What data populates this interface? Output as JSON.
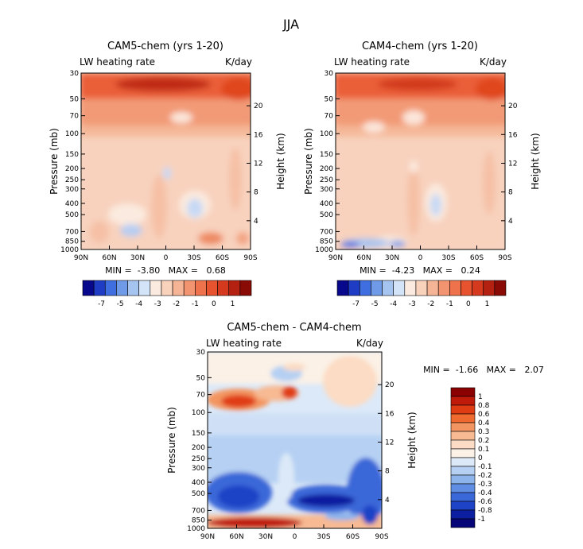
{
  "figure": {
    "title": "JJA"
  },
  "chart_data": [
    {
      "type": "heatmap",
      "title": "CAM5-chem (yrs 1-20)",
      "left_label": "LW heating rate",
      "right_label": "K/day",
      "xlabel": "",
      "ylabel": "Pressure (mb)",
      "y2label": "Height (km)",
      "x_ticks": [
        "90N",
        "60N",
        "30N",
        "0",
        "30S",
        "60S",
        "90S"
      ],
      "y_ticks": [
        "30",
        "50",
        "70",
        "100",
        "150",
        "200",
        "250",
        "300",
        "400",
        "500",
        "700",
        "850",
        "1000"
      ],
      "y2_ticks": [
        "20",
        "16",
        "12",
        "8",
        "4"
      ],
      "ylim": [
        30,
        1000
      ],
      "stats": "MIN =  -3.80   MAX =   0.68",
      "colorbar_labels": [
        "-7",
        "-5",
        "-4",
        "-3",
        "-2",
        "-1",
        "0",
        "1"
      ]
    },
    {
      "type": "heatmap",
      "title": "CAM4-chem (yrs 1-20)",
      "left_label": "LW heating rate",
      "right_label": "K/day",
      "xlabel": "",
      "ylabel": "Pressure (mb)",
      "y2label": "Height (km)",
      "x_ticks": [
        "90N",
        "60N",
        "30N",
        "0",
        "30S",
        "60S",
        "90S"
      ],
      "y_ticks": [
        "30",
        "50",
        "70",
        "100",
        "150",
        "200",
        "250",
        "300",
        "400",
        "500",
        "700",
        "850",
        "1000"
      ],
      "y2_ticks": [
        "20",
        "16",
        "12",
        "8",
        "4"
      ],
      "ylim": [
        30,
        1000
      ],
      "stats": "MIN =  -4.23   MAX =   0.24",
      "colorbar_labels": [
        "-7",
        "-5",
        "-4",
        "-3",
        "-2",
        "-1",
        "0",
        "1"
      ]
    },
    {
      "type": "heatmap",
      "title": "CAM5-chem - CAM4-chem",
      "left_label": "LW heating rate",
      "right_label": "K/day",
      "xlabel": "",
      "ylabel": "Pressure (mb)",
      "y2label": "Height (km)",
      "x_ticks": [
        "90N",
        "60N",
        "30N",
        "0",
        "30S",
        "60S",
        "90S"
      ],
      "y_ticks": [
        "30",
        "50",
        "70",
        "100",
        "150",
        "200",
        "250",
        "300",
        "400",
        "500",
        "700",
        "850",
        "1000"
      ],
      "y2_ticks": [
        "20",
        "16",
        "12",
        "8",
        "4"
      ],
      "ylim": [
        30,
        1000
      ],
      "stats": "MIN =  -1.66   MAX =   2.07",
      "colorbar_labels": [
        "1",
        "0.8",
        "0.6",
        "0.4",
        "0.3",
        "0.2",
        "0.1",
        "0",
        "-0.1",
        "-0.2",
        "-0.3",
        "-0.4",
        "-0.6",
        "-0.8",
        "-1"
      ]
    }
  ],
  "colors": {
    "scale_abs": [
      "#08088c",
      "#1f3cc4",
      "#3f6ee0",
      "#6f9ae8",
      "#a6c4f0",
      "#d3e4f8",
      "#fbeadf",
      "#f9d2bc",
      "#f6b496",
      "#f29470",
      "#ee734d",
      "#e8532f",
      "#d63a1e",
      "#b52110",
      "#8a0a06"
    ],
    "scale_diff": [
      "#8b0000",
      "#c01a0a",
      "#e03c14",
      "#ef6a2e",
      "#f39560",
      "#f7ba93",
      "#fcdcc4",
      "#fbf1e6",
      "#dce9f8",
      "#b5d0f3",
      "#8eb4ec",
      "#5f8ee4",
      "#3a68d8",
      "#1f43c6",
      "#0b1fa0",
      "#050577"
    ]
  }
}
